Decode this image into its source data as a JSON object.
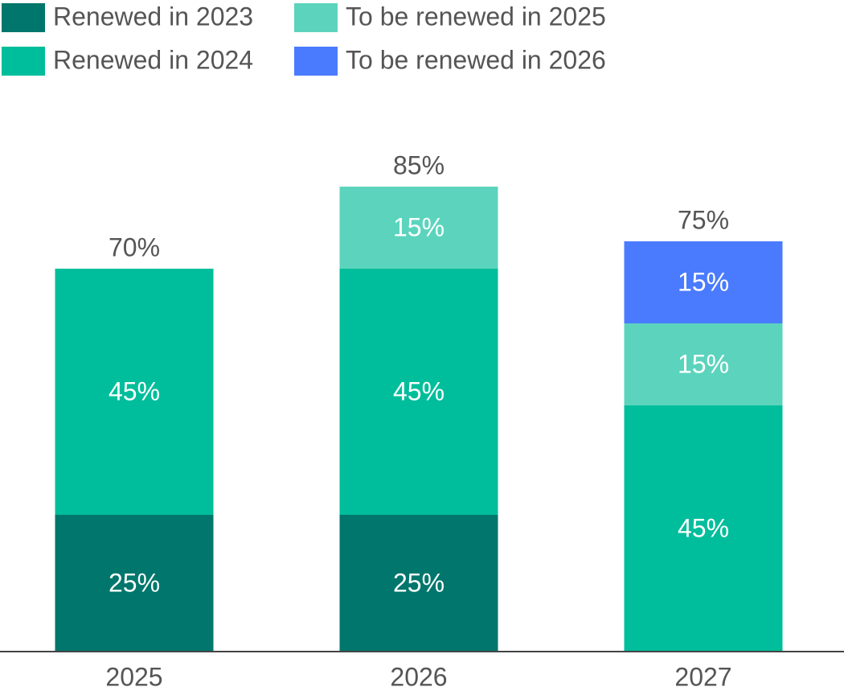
{
  "chart_data": {
    "type": "stacked-bar",
    "categories": [
      "2025",
      "2026",
      "2027"
    ],
    "series": [
      {
        "name": "Renewed in 2023",
        "color": "#00766c",
        "values": [
          25,
          25,
          null
        ],
        "value_labels": [
          "25%",
          "25%",
          null
        ]
      },
      {
        "name": "Renewed in 2024",
        "color": "#00be9b",
        "values": [
          45,
          45,
          45
        ],
        "value_labels": [
          "45%",
          "45%",
          "45%"
        ]
      },
      {
        "name": "To be renewed in 2025",
        "color": "#5cd4bd",
        "values": [
          null,
          15,
          15
        ],
        "value_labels": [
          null,
          "15%",
          "15%"
        ]
      },
      {
        "name": "To be renewed in 2026",
        "color": "#4a7bff",
        "values": [
          null,
          null,
          15
        ],
        "value_labels": [
          null,
          null,
          "15%"
        ]
      }
    ],
    "totals": [
      70,
      85,
      75
    ],
    "total_labels": [
      "70%",
      "85%",
      "75%"
    ],
    "ylim": [
      0,
      100
    ]
  }
}
